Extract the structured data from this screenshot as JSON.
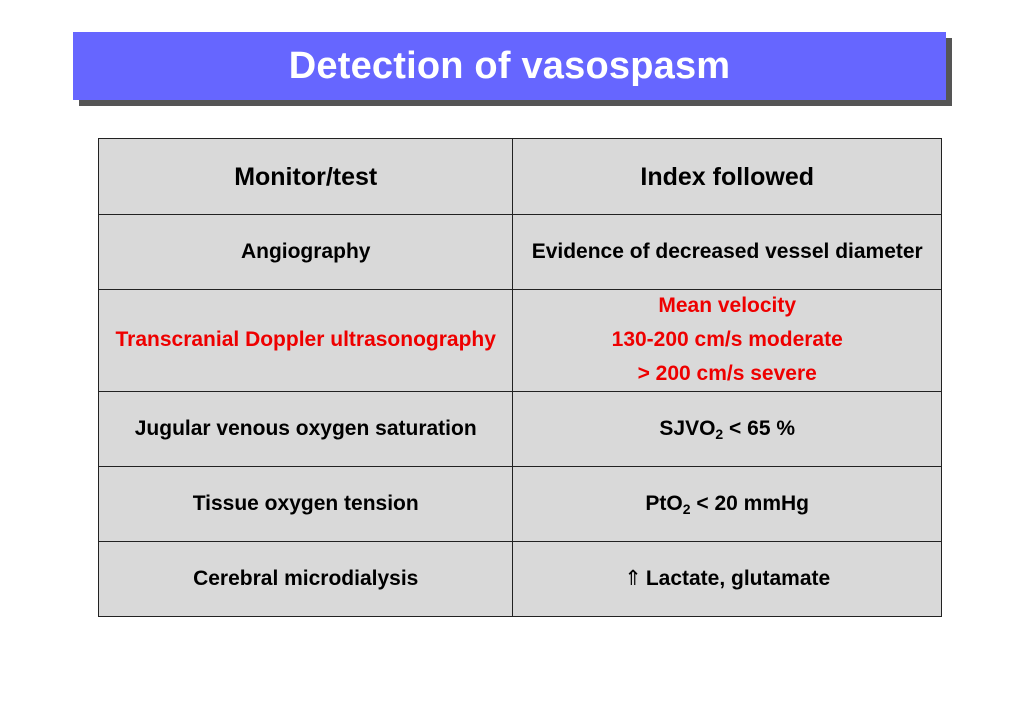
{
  "title": "Detection of vasospasm",
  "table": {
    "headers": {
      "monitor": "Monitor/test",
      "index": "Index followed"
    },
    "rows": [
      {
        "monitor": "Angiography",
        "index": "Evidence of decreased vessel diameter"
      },
      {
        "monitor": "Transcranial Doppler ultrasonography",
        "index_lines": [
          "Mean velocity",
          "130-200 cm/s moderate",
          "> 200 cm/s severe"
        ],
        "highlight_color": "#ee0000"
      },
      {
        "monitor": "Jugular venous oxygen saturation",
        "index_prefix": "SJVO",
        "index_sub": "2",
        "index_suffix": " < 65 %"
      },
      {
        "monitor": "Tissue oxygen tension",
        "index_prefix": "PtO",
        "index_sub": "2",
        "index_suffix": " < 20 mmHg"
      },
      {
        "monitor": "Cerebral microdialysis",
        "index_icon": "double-up-arrow-icon",
        "index_text": "Lactate, glutamate"
      }
    ]
  },
  "colors": {
    "title_background": "#6666ff",
    "title_text": "#ffffff",
    "table_background": "#d9d9d9",
    "highlight_text": "#ee0000"
  }
}
